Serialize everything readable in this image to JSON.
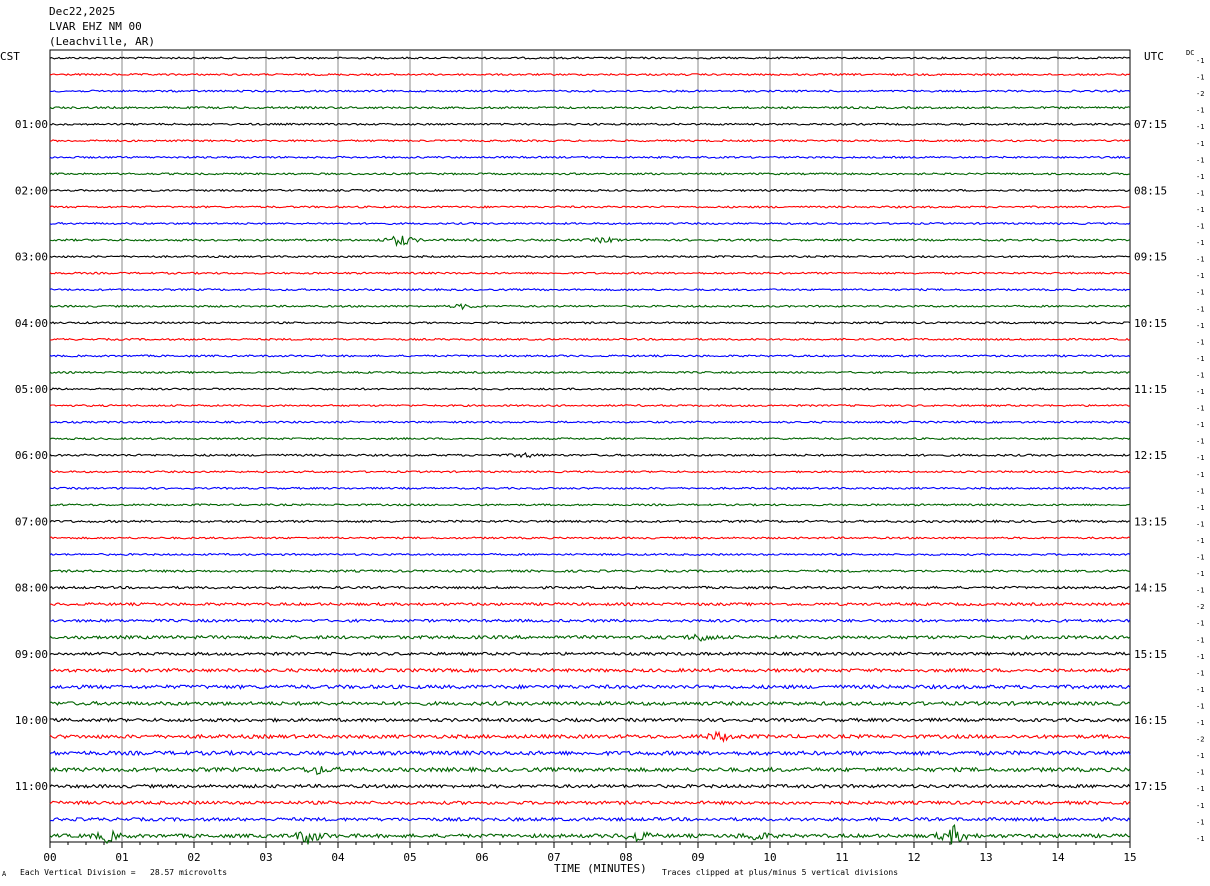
{
  "header": {
    "date": "Dec22,2025",
    "station": "LVAR EHZ NM 00",
    "location": "(Leachville, AR)"
  },
  "left_zone": "CST",
  "right_zone": "UTC",
  "dc_label": "DC",
  "footer": {
    "scale": "Each Vertical Division =   28.57 microvolts",
    "clip": "Traces clipped at plus/minus 5 vertical divisions",
    "corner_mark": "A"
  },
  "chart_data": {
    "type": "line",
    "title": "Dec22,2025 LVAR EHZ NM 00 (Leachville, AR)",
    "xlabel": "TIME (MINUTES)",
    "xlim": [
      0,
      15
    ],
    "x_ticks": [
      "00",
      "01",
      "02",
      "03",
      "04",
      "05",
      "06",
      "07",
      "08",
      "09",
      "10",
      "11",
      "12",
      "13",
      "14",
      "15"
    ],
    "left_time_labels": [
      "01:00",
      "02:00",
      "03:00",
      "04:00",
      "05:00",
      "06:00",
      "07:00",
      "08:00",
      "09:00",
      "10:00",
      "11:00"
    ],
    "right_time_labels": [
      "07:15",
      "08:15",
      "09:15",
      "10:15",
      "11:15",
      "12:15",
      "13:15",
      "14:15",
      "15:15",
      "16:15",
      "17:15"
    ],
    "trace_count": 48,
    "trace_colors": [
      "#000000",
      "#ff0000",
      "#0000ff",
      "#006400"
    ],
    "dc_offsets": [
      "-1",
      "-1",
      "-2",
      "-1",
      "-1",
      "-1",
      "-1",
      "-1",
      "-1",
      "-1",
      "-1",
      "-1",
      "-1",
      "-1",
      "-1",
      "-1",
      "-1",
      "-1",
      "-1",
      "-1",
      "-1",
      "-1",
      "-1",
      "-1",
      "-1",
      "-1",
      "-1",
      "-1",
      "-1",
      "-1",
      "-1",
      "-1",
      "-1",
      "-2",
      "-1",
      "-1",
      "-1",
      "-1",
      "-1",
      "-1",
      "-1",
      "-2",
      "-1",
      "-1",
      "-1",
      "-1",
      "-1",
      "-1"
    ],
    "noise_levels": [
      1,
      1,
      1,
      1.1,
      1,
      1,
      1,
      1,
      1,
      1,
      1,
      1.1,
      1,
      1,
      1,
      1,
      1,
      1,
      1,
      1,
      1,
      1,
      1,
      1,
      1.1,
      1,
      1,
      1,
      1.2,
      1,
      1,
      1.2,
      1.3,
      1.5,
      1.5,
      1.8,
      1.6,
      1.8,
      2,
      2,
      1.8,
      2,
      2.2,
      2.2,
      1.8,
      1.8,
      1.8,
      2
    ],
    "events": [
      {
        "trace": 11,
        "minute": 4.87,
        "amp": 7
      },
      {
        "trace": 11,
        "minute": 7.7,
        "amp": 3
      },
      {
        "trace": 15,
        "minute": 5.75,
        "amp": 2.5
      },
      {
        "trace": 24,
        "minute": 6.6,
        "amp": 2.5
      },
      {
        "trace": 35,
        "minute": 9.05,
        "amp": 4
      },
      {
        "trace": 41,
        "minute": 9.3,
        "amp": 5
      },
      {
        "trace": 43,
        "minute": 3.7,
        "amp": 4
      },
      {
        "trace": 47,
        "minute": 0.8,
        "amp": 6
      },
      {
        "trace": 47,
        "minute": 3.6,
        "amp": 9
      },
      {
        "trace": 47,
        "minute": 8.15,
        "amp": 6
      },
      {
        "trace": 47,
        "minute": 9.8,
        "amp": 5
      },
      {
        "trace": 47,
        "minute": 12.55,
        "amp": 10
      }
    ]
  }
}
